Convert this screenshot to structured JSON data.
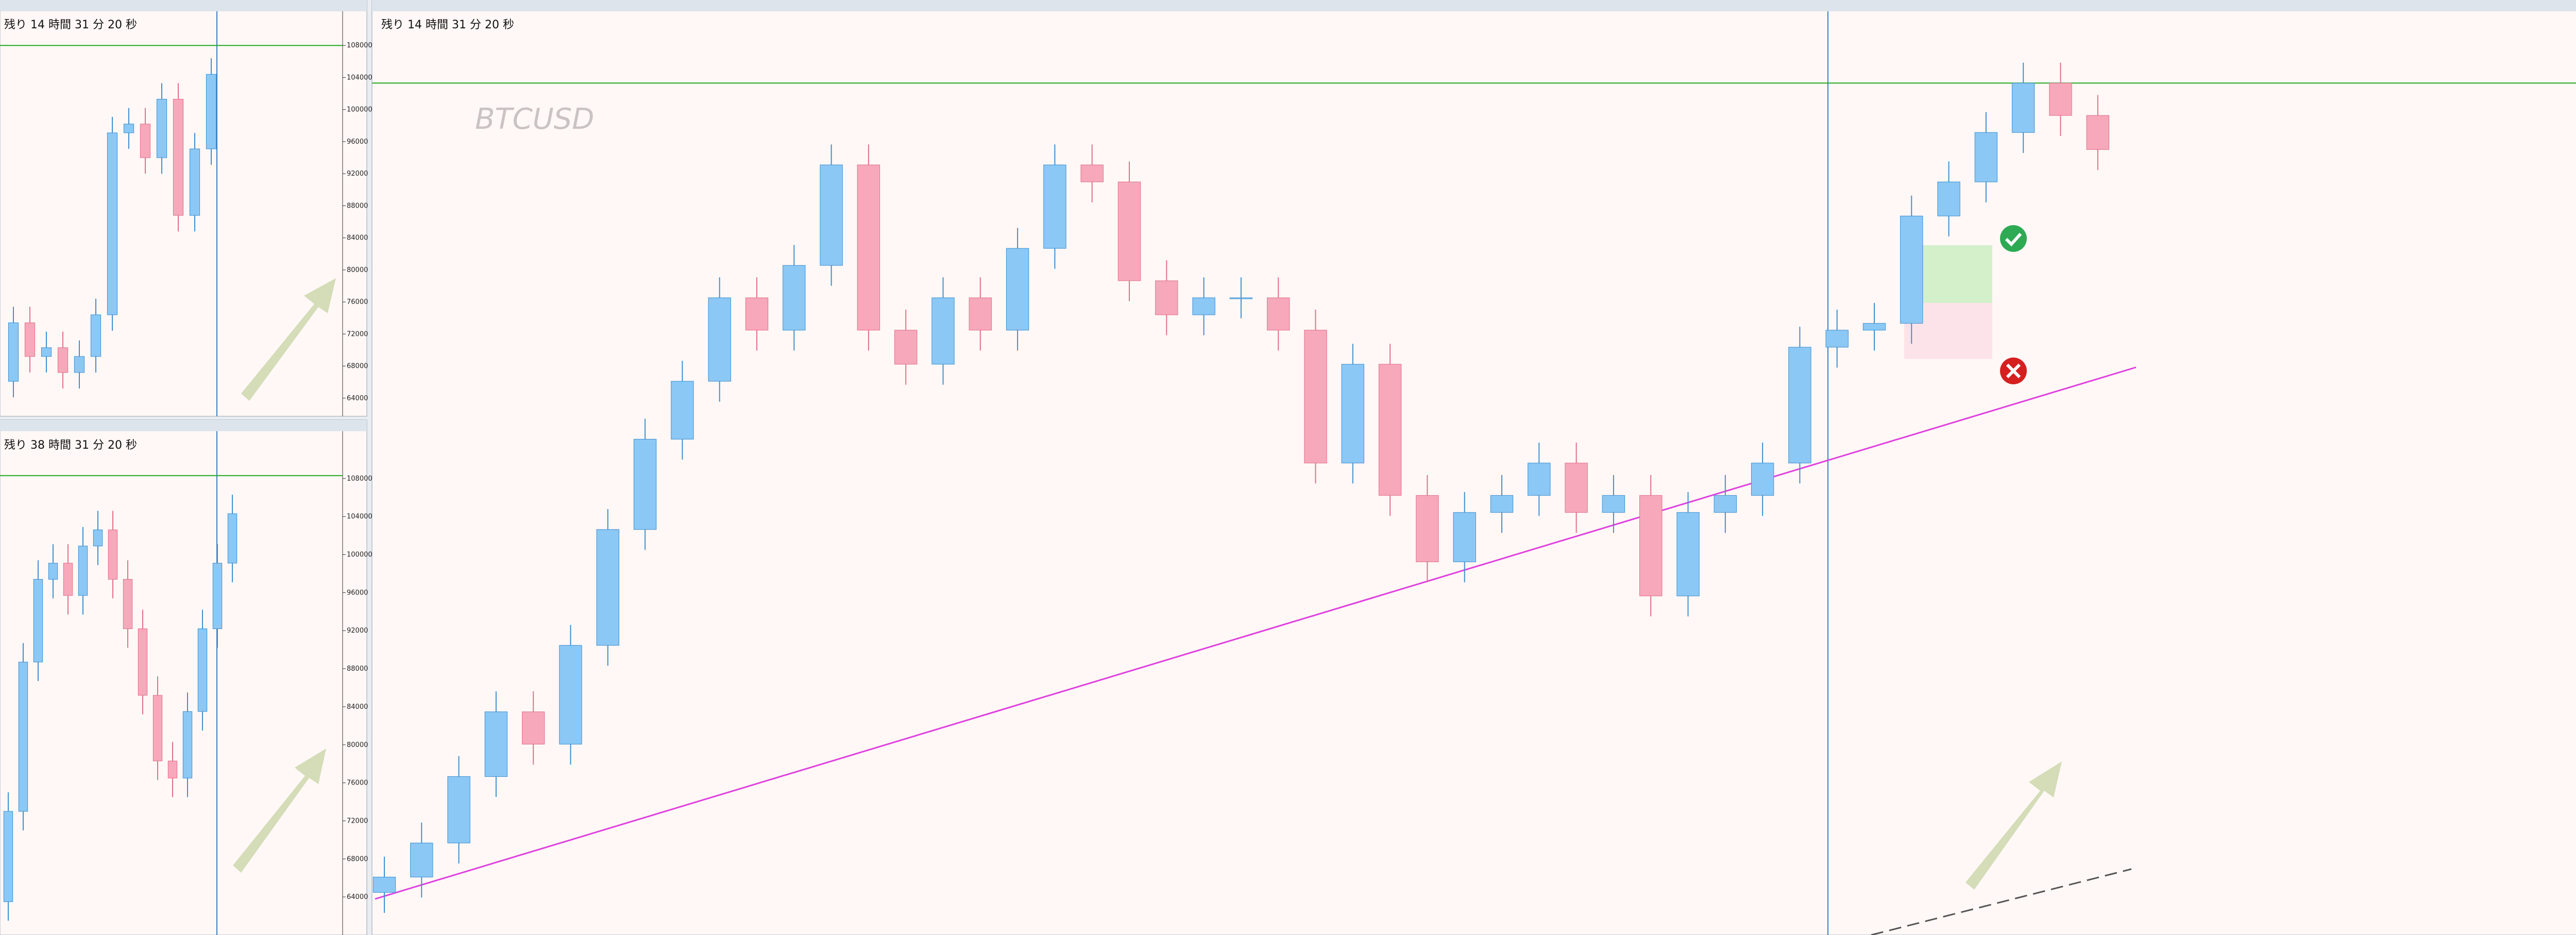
{
  "watermark": "BTCUSD",
  "bull_color": "#8cc8f5",
  "bear_color": "#f7a8bb",
  "level_color": "#22aa22",
  "windows": [
    {
      "countdown": "残り 14 時間 31 分 20 秒",
      "ylim": [
        62000,
        112000
      ],
      "level": 108000,
      "yticks": [
        64000,
        68000,
        72000,
        76000,
        80000,
        84000,
        88000,
        92000,
        96000,
        100000,
        104000,
        108000
      ],
      "open": [
        66100,
        73400,
        69200,
        70300,
        67200,
        69200,
        74400,
        97100,
        98200,
        94000,
        101300,
        86800,
        95100
      ],
      "high": [
        75400,
        75400,
        72300,
        72300,
        71200,
        76400,
        99100,
        100200,
        100200,
        103300,
        103300,
        97100,
        106400
      ],
      "low": [
        64100,
        67200,
        67200,
        65200,
        65200,
        67200,
        72400,
        95100,
        92000,
        92000,
        84800,
        84800,
        93100
      ],
      "close": [
        73400,
        69200,
        70300,
        67200,
        69200,
        74400,
        97100,
        98200,
        94000,
        101300,
        86800,
        95100,
        104400
      ]
    },
    {
      "countdown": "残り 38 時間 31 分 20 秒",
      "ylim": [
        60000,
        112000
      ],
      "level": 108300,
      "yticks": [
        64000,
        68000,
        72000,
        76000,
        80000,
        84000,
        88000,
        92000,
        96000,
        100000,
        104000,
        108000
      ],
      "open": [
        63500,
        73000,
        88700,
        97400,
        99100,
        95700,
        100900,
        102600,
        97400,
        92200,
        85200,
        78300,
        76500,
        83500,
        92200,
        99100
      ],
      "high": [
        75000,
        90700,
        99400,
        101100,
        101100,
        102900,
        104600,
        104600,
        99400,
        94200,
        87200,
        80300,
        85500,
        94200,
        101100,
        106300
      ],
      "low": [
        61500,
        71000,
        86700,
        95400,
        93700,
        93700,
        98900,
        95400,
        90200,
        83200,
        76300,
        74500,
        74500,
        81500,
        90200,
        97100
      ],
      "close": [
        73000,
        88700,
        97400,
        99100,
        95700,
        100900,
        102600,
        97400,
        92200,
        85200,
        78300,
        76500,
        83500,
        92200,
        99100,
        104300
      ]
    },
    {
      "countdown": "残り 14 時間 31 分 20 秒",
      "ylim": [
        58000,
        112000
      ],
      "level": 108000,
      "open": [
        60500,
        61400,
        63400,
        67300,
        71100,
        69200,
        75000,
        81800,
        87100,
        90500,
        95400,
        93500,
        97300,
        103200,
        93500,
        91500,
        95400,
        93500,
        98300,
        103200,
        102200,
        96400,
        94400,
        95400,
        95400,
        93500,
        85700,
        91500,
        83800,
        79900,
        82800,
        83800,
        85700,
        82800,
        83800,
        77900,
        82800,
        83800,
        85700,
        92500,
        93500,
        93900,
        100200,
        102200,
        105100,
        108000,
        106100
      ],
      "high": [
        62600,
        64600,
        68500,
        72300,
        72300,
        76200,
        83000,
        88300,
        91700,
        96600,
        96600,
        98500,
        104400,
        104400,
        94700,
        96600,
        96600,
        99500,
        104400,
        104400,
        103400,
        97600,
        96600,
        96600,
        96600,
        94700,
        92700,
        92700,
        85000,
        84000,
        85000,
        86900,
        86900,
        85000,
        85000,
        84000,
        85000,
        86900,
        93700,
        94700,
        95100,
        101400,
        103400,
        106300,
        109200,
        109200,
        107300
      ],
      "low": [
        59300,
        60200,
        62200,
        66100,
        68000,
        68000,
        73800,
        80600,
        85900,
        89300,
        92300,
        92300,
        96100,
        92300,
        90300,
        90300,
        92300,
        92300,
        97100,
        101000,
        95200,
        93200,
        93200,
        94200,
        92300,
        84500,
        84500,
        82600,
        78700,
        78700,
        81600,
        82600,
        81600,
        81600,
        76700,
        76700,
        81600,
        82600,
        84500,
        91300,
        92300,
        92700,
        99000,
        101000,
        103900,
        104900,
        102900
      ],
      "close": [
        61400,
        63400,
        67300,
        71100,
        69200,
        75000,
        81800,
        87100,
        90500,
        95400,
        93500,
        97300,
        103200,
        93500,
        91500,
        95400,
        93500,
        98300,
        103200,
        102200,
        96400,
        94400,
        95400,
        95400,
        93500,
        85700,
        91500,
        83800,
        79900,
        82800,
        83800,
        85700,
        82800,
        83800,
        77900,
        82800,
        83800,
        85700,
        92500,
        93500,
        93900,
        100200,
        102200,
        105100,
        108000,
        106100,
        104100
      ]
    }
  ]
}
